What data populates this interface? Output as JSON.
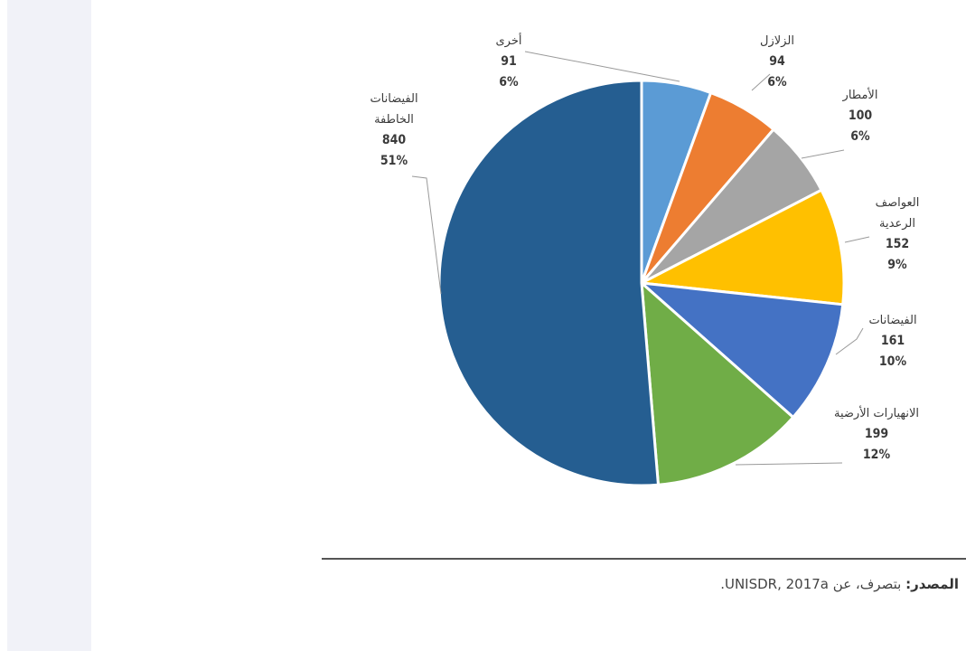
{
  "chart_data": {
    "type": "pie",
    "title": "",
    "slices": [
      {
        "label": "أخرى",
        "value": 91,
        "percent": "6%",
        "color": "#5b9bd5"
      },
      {
        "label": "الزلازل",
        "value": 94,
        "percent": "6%",
        "color": "#ed7d31"
      },
      {
        "label": "الأمطار",
        "value": 100,
        "percent": "6%",
        "color": "#a5a5a5"
      },
      {
        "label": "العواصف الرعدية",
        "value": 152,
        "percent": "9%",
        "color": "#ffc000"
      },
      {
        "label": "الفيضانات",
        "value": 161,
        "percent": "10%",
        "color": "#4472c4"
      },
      {
        "label": "الانهيارات الأرضية",
        "value": 199,
        "percent": "12%",
        "color": "#70ad47"
      },
      {
        "label": "الفيضانات الخاطفة",
        "value": 840,
        "percent": "51%",
        "color": "#255e91"
      }
    ]
  },
  "source": {
    "label": "المصدر:",
    "text": "بتصرف، عن UNISDR, 2017a."
  }
}
